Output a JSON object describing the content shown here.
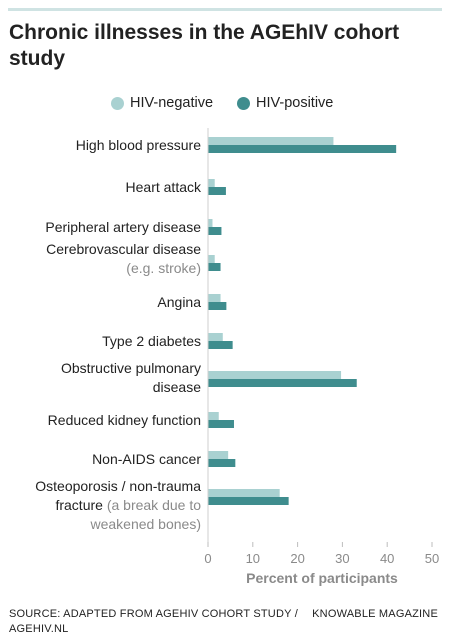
{
  "title": "Chronic illnesses in the AGEhIV cohort study",
  "colors": {
    "hiv_negative": "#a9d1d1",
    "hiv_positive": "#3f8d8e",
    "accent_rule": "#cfe3e3"
  },
  "chart_data": {
    "type": "bar",
    "orientation": "horizontal",
    "title": "Chronic illnesses in the AGEhIV cohort study",
    "xlabel": "Percent of participants",
    "ylabel": "",
    "xlim": [
      0,
      50
    ],
    "xticks": [
      0,
      10,
      20,
      30,
      40,
      50
    ],
    "grid": false,
    "legend_position": "top",
    "categories": [
      {
        "label": "High blood pressure",
        "note": ""
      },
      {
        "label": "Heart attack",
        "note": ""
      },
      {
        "label": "Peripheral artery disease",
        "note": ""
      },
      {
        "label": "Cerebrovascular disease",
        "note": "(e.g. stroke)"
      },
      {
        "label": "Angina",
        "note": ""
      },
      {
        "label": "Type 2 diabetes",
        "note": ""
      },
      {
        "label": "Obstructive pulmonary disease",
        "note": ""
      },
      {
        "label": "Reduced kidney function",
        "note": ""
      },
      {
        "label": "Non-AIDS cancer",
        "note": ""
      },
      {
        "label": "Osteoporosis / non-trauma fracture",
        "note": "(a break due to weakened bones)"
      }
    ],
    "series": [
      {
        "name": "HIV-negative",
        "color": "#a9d1d1",
        "values": [
          28,
          1.5,
          1,
          1.5,
          2.8,
          3.3,
          29.7,
          2.4,
          4.5,
          16
        ]
      },
      {
        "name": "HIV-positive",
        "color": "#3f8d8e",
        "values": [
          42,
          4,
          3,
          2.8,
          4.1,
          5.5,
          33.2,
          5.8,
          6.1,
          18
        ]
      }
    ]
  },
  "footer": {
    "source": "SOURCE: ADAPTED FROM AGEHIV COHORT STUDY / AGEHIV.NL",
    "credit": "KNOWABLE MAGAZINE"
  }
}
